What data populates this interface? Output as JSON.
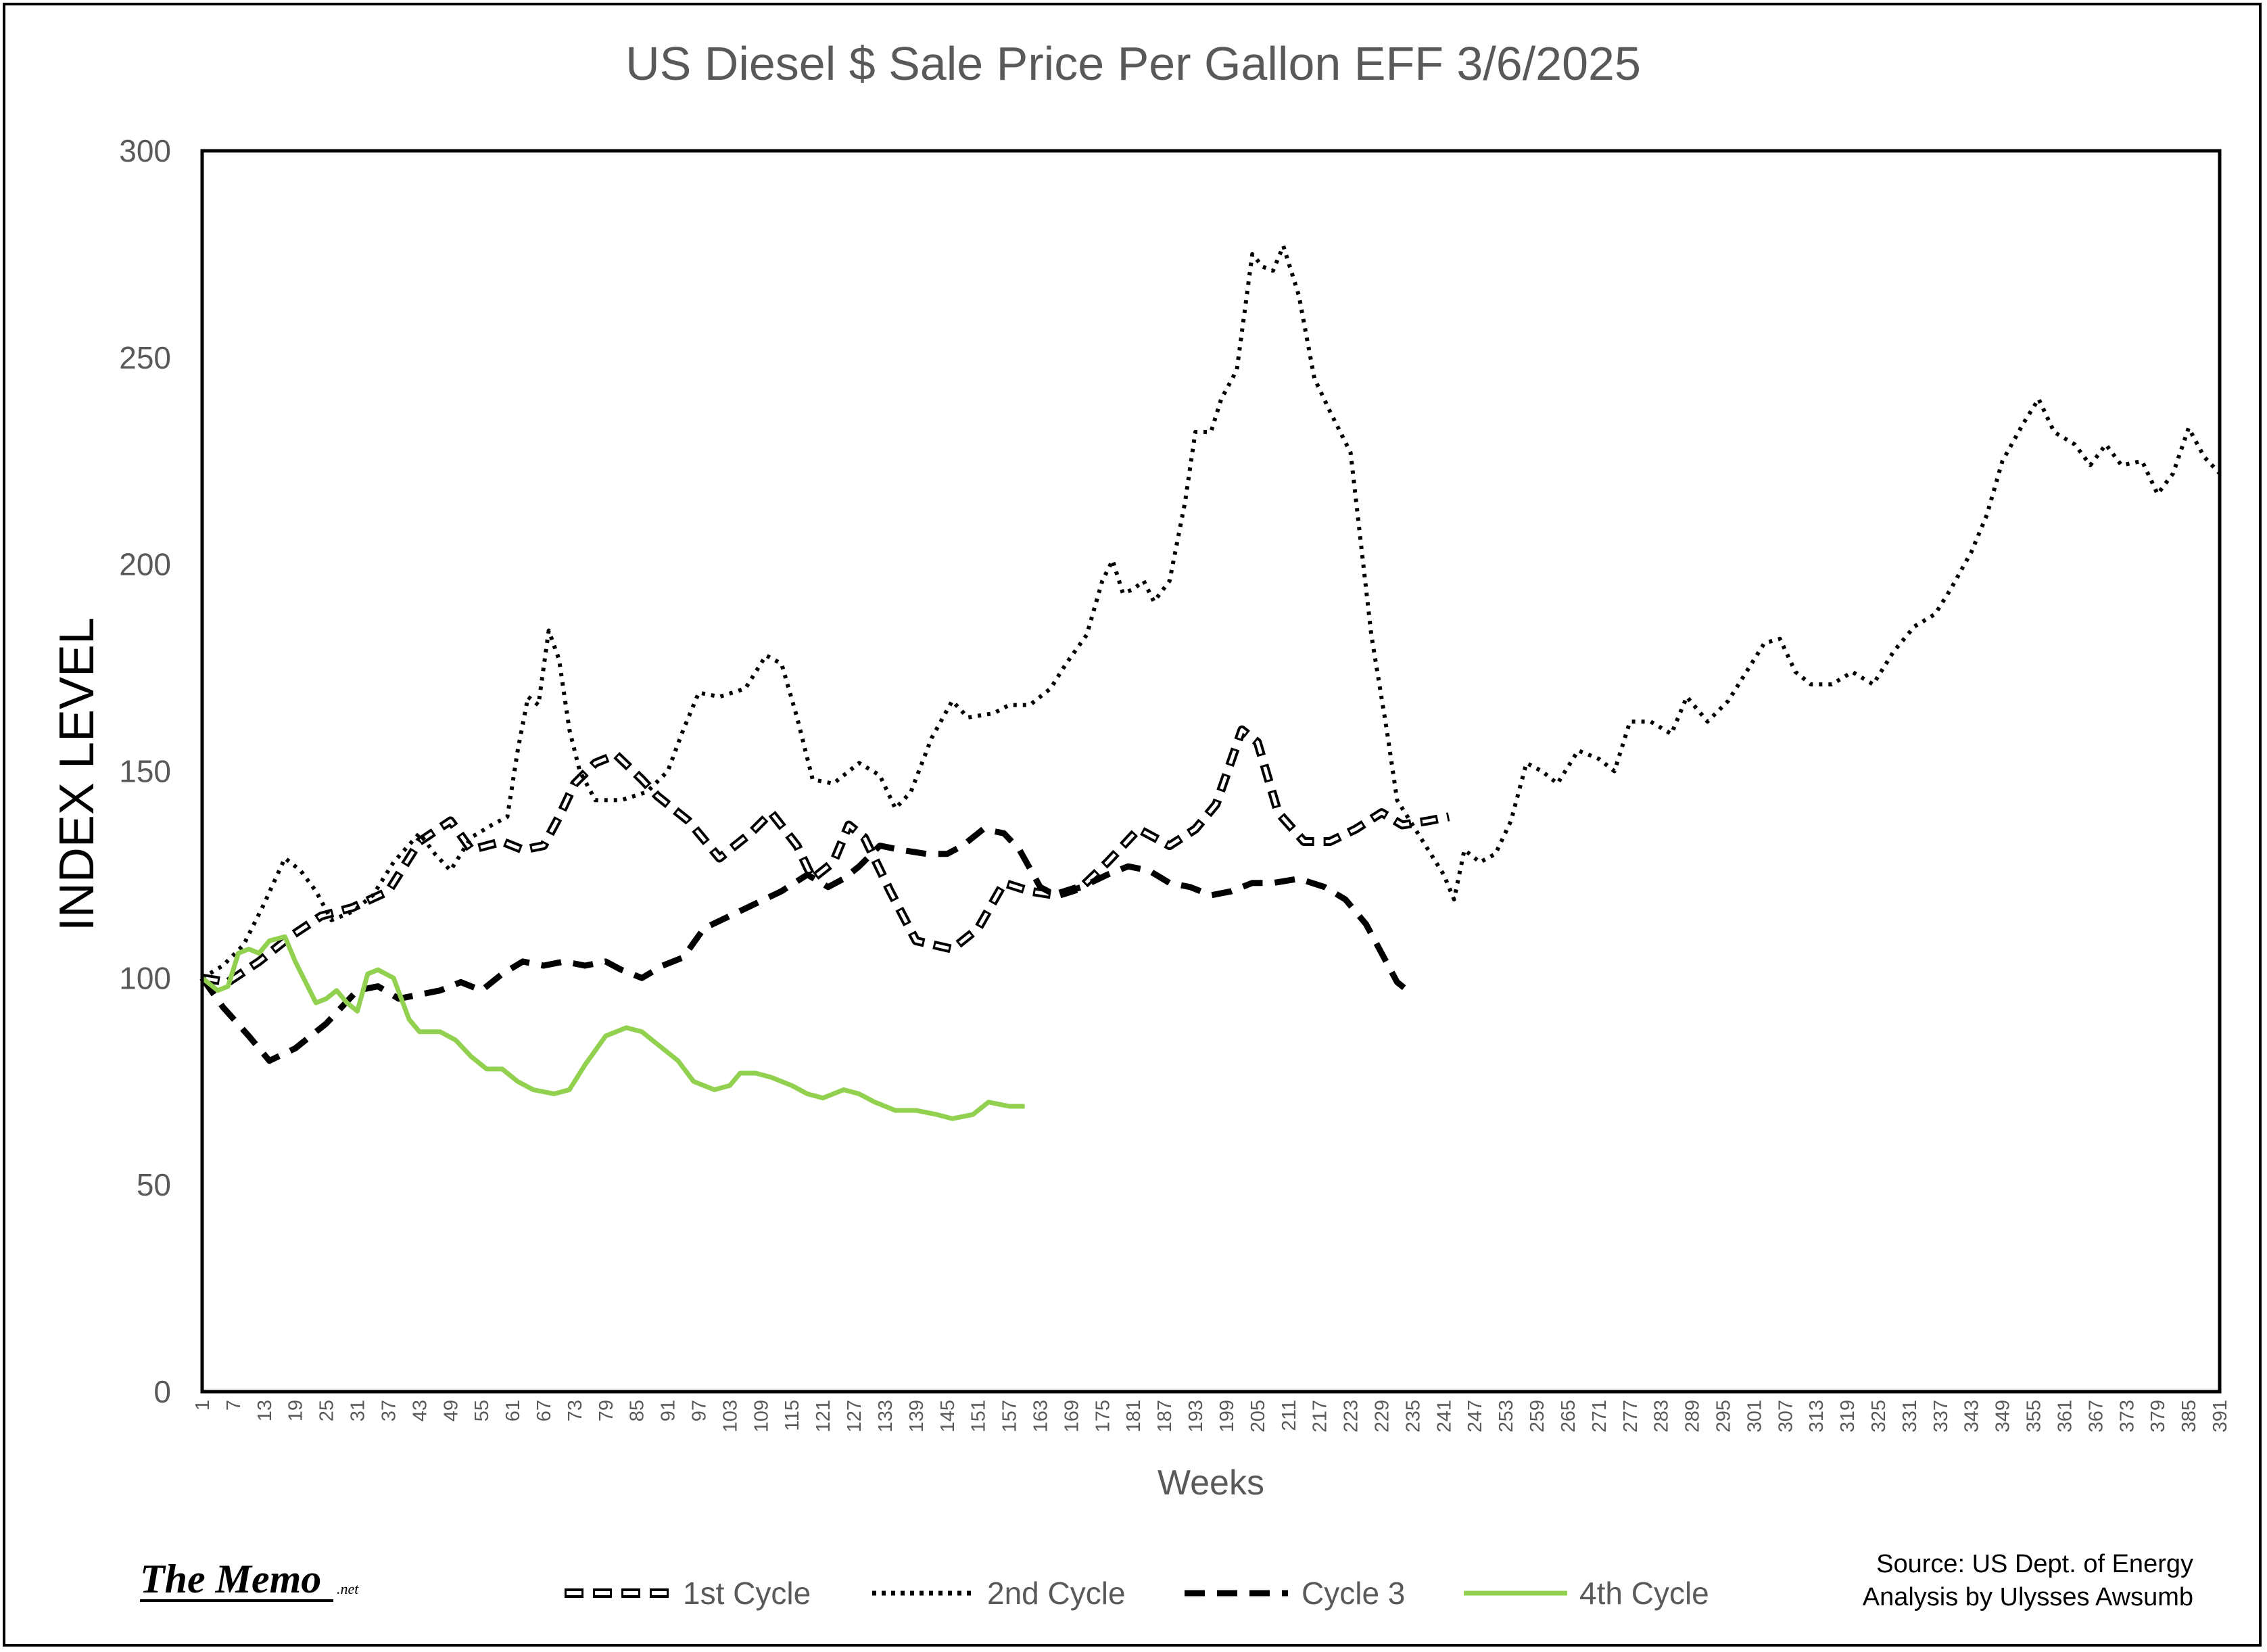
{
  "chart_data": {
    "type": "line",
    "title": "US Diesel $ Sale Price Per Gallon EFF 3/6/2025",
    "xlabel": "Weeks",
    "ylabel": "INDEX LEVEL",
    "ylim": [
      0,
      300
    ],
    "xlim": [
      1,
      391
    ],
    "yticks": [
      "0",
      "50",
      "100",
      "150",
      "200",
      "250",
      "300"
    ],
    "xticks": [
      "1",
      "7",
      "13",
      "19",
      "25",
      "31",
      "37",
      "43",
      "49",
      "55",
      "61",
      "67",
      "73",
      "79",
      "85",
      "91",
      "97",
      "103",
      "109",
      "115",
      "121",
      "127",
      "133",
      "139",
      "145",
      "151",
      "157",
      "163",
      "169",
      "175",
      "181",
      "187",
      "193",
      "199",
      "205",
      "211",
      "217",
      "223",
      "229",
      "235",
      "241",
      "247",
      "253",
      "259",
      "265",
      "271",
      "277",
      "283",
      "289",
      "295",
      "301",
      "307",
      "313",
      "319",
      "325",
      "331",
      "337",
      "343",
      "349",
      "355",
      "361",
      "367",
      "373",
      "379",
      "385",
      "391"
    ],
    "legend_position": "bottom",
    "series": [
      {
        "name": "1st Cycle",
        "style": "double-dash",
        "color": "#000000",
        "points": [
          [
            1,
            100
          ],
          [
            6,
            99
          ],
          [
            12,
            104
          ],
          [
            18,
            110
          ],
          [
            24,
            115
          ],
          [
            30,
            117
          ],
          [
            37,
            121
          ],
          [
            43,
            133
          ],
          [
            49,
            138
          ],
          [
            53,
            131
          ],
          [
            59,
            133
          ],
          [
            63,
            131
          ],
          [
            67,
            132
          ],
          [
            70,
            139
          ],
          [
            73,
            147
          ],
          [
            77,
            152
          ],
          [
            81,
            154
          ],
          [
            86,
            148
          ],
          [
            89,
            144
          ],
          [
            95,
            138
          ],
          [
            101,
            129
          ],
          [
            107,
            135
          ],
          [
            111,
            140
          ],
          [
            116,
            132
          ],
          [
            119,
            124
          ],
          [
            123,
            128
          ],
          [
            126,
            137
          ],
          [
            129,
            134
          ],
          [
            134,
            121
          ],
          [
            139,
            109
          ],
          [
            146,
            107
          ],
          [
            151,
            112
          ],
          [
            156,
            123
          ],
          [
            161,
            121
          ],
          [
            166,
            120
          ],
          [
            171,
            122
          ],
          [
            176,
            128
          ],
          [
            182,
            136
          ],
          [
            188,
            132
          ],
          [
            193,
            136
          ],
          [
            197,
            142
          ],
          [
            202,
            160
          ],
          [
            205,
            157
          ],
          [
            209,
            140
          ],
          [
            214,
            133
          ],
          [
            219,
            133
          ],
          [
            224,
            136
          ],
          [
            229,
            140
          ],
          [
            233,
            137
          ],
          [
            238,
            138
          ],
          [
            242,
            139
          ]
        ]
      },
      {
        "name": "2nd Cycle",
        "style": "dotted",
        "color": "#000000",
        "points": [
          [
            1,
            100
          ],
          [
            5,
            103
          ],
          [
            9,
            108
          ],
          [
            13,
            118
          ],
          [
            17,
            129
          ],
          [
            20,
            126
          ],
          [
            23,
            121
          ],
          [
            26,
            114
          ],
          [
            30,
            116
          ],
          [
            34,
            120
          ],
          [
            38,
            128
          ],
          [
            43,
            135
          ],
          [
            46,
            130
          ],
          [
            49,
            126
          ],
          [
            53,
            134
          ],
          [
            57,
            137
          ],
          [
            60,
            139
          ],
          [
            62,
            155
          ],
          [
            64,
            168
          ],
          [
            66,
            166
          ],
          [
            68,
            184
          ],
          [
            70,
            177
          ],
          [
            72,
            160
          ],
          [
            74,
            150
          ],
          [
            77,
            143
          ],
          [
            82,
            143
          ],
          [
            87,
            145
          ],
          [
            91,
            150
          ],
          [
            94,
            160
          ],
          [
            97,
            169
          ],
          [
            101,
            168
          ],
          [
            106,
            170
          ],
          [
            110,
            178
          ],
          [
            113,
            176
          ],
          [
            116,
            163
          ],
          [
            119,
            148
          ],
          [
            123,
            147
          ],
          [
            128,
            152
          ],
          [
            132,
            149
          ],
          [
            135,
            141
          ],
          [
            138,
            145
          ],
          [
            142,
            158
          ],
          [
            146,
            167
          ],
          [
            149,
            163
          ],
          [
            154,
            164
          ],
          [
            157,
            166
          ],
          [
            161,
            166
          ],
          [
            165,
            170
          ],
          [
            168,
            176
          ],
          [
            172,
            183
          ],
          [
            175,
            196
          ],
          [
            177,
            201
          ],
          [
            179,
            193
          ],
          [
            181,
            194
          ],
          [
            183,
            196
          ],
          [
            185,
            191
          ],
          [
            188,
            196
          ],
          [
            191,
            215
          ],
          [
            193,
            232
          ],
          [
            196,
            232
          ],
          [
            198,
            240
          ],
          [
            201,
            247
          ],
          [
            204,
            275
          ],
          [
            206,
            272
          ],
          [
            208,
            271
          ],
          [
            210,
            277
          ],
          [
            213,
            265
          ],
          [
            216,
            245
          ],
          [
            219,
            237
          ],
          [
            223,
            227
          ],
          [
            225,
            205
          ],
          [
            227,
            183
          ],
          [
            230,
            160
          ],
          [
            232,
            143
          ],
          [
            235,
            137
          ],
          [
            238,
            131
          ],
          [
            241,
            125
          ],
          [
            243,
            119
          ],
          [
            245,
            131
          ],
          [
            248,
            128
          ],
          [
            251,
            130
          ],
          [
            254,
            138
          ],
          [
            257,
            152
          ],
          [
            260,
            150
          ],
          [
            263,
            147
          ],
          [
            267,
            155
          ],
          [
            271,
            153
          ],
          [
            274,
            150
          ],
          [
            277,
            162
          ],
          [
            281,
            162
          ],
          [
            285,
            159
          ],
          [
            288,
            168
          ],
          [
            292,
            162
          ],
          [
            296,
            167
          ],
          [
            299,
            173
          ],
          [
            303,
            181
          ],
          [
            306,
            182
          ],
          [
            309,
            174
          ],
          [
            312,
            171
          ],
          [
            316,
            171
          ],
          [
            320,
            174
          ],
          [
            324,
            171
          ],
          [
            328,
            179
          ],
          [
            332,
            185
          ],
          [
            336,
            188
          ],
          [
            339,
            194
          ],
          [
            343,
            203
          ],
          [
            346,
            212
          ],
          [
            349,
            225
          ],
          [
            353,
            234
          ],
          [
            356,
            240
          ],
          [
            359,
            232
          ],
          [
            363,
            229
          ],
          [
            366,
            224
          ],
          [
            369,
            229
          ],
          [
            372,
            224
          ],
          [
            376,
            225
          ],
          [
            379,
            217
          ],
          [
            382,
            222
          ],
          [
            385,
            233
          ],
          [
            388,
            226
          ],
          [
            391,
            222
          ]
        ]
      },
      {
        "name": "Cycle 3",
        "style": "dashed",
        "color": "#000000",
        "points": [
          [
            1,
            100
          ],
          [
            5,
            93
          ],
          [
            10,
            86
          ],
          [
            14,
            80
          ],
          [
            19,
            83
          ],
          [
            25,
            89
          ],
          [
            31,
            97
          ],
          [
            35,
            98
          ],
          [
            39,
            95
          ],
          [
            43,
            96
          ],
          [
            47,
            97
          ],
          [
            51,
            99
          ],
          [
            55,
            97
          ],
          [
            59,
            101
          ],
          [
            63,
            104
          ],
          [
            67,
            103
          ],
          [
            71,
            104
          ],
          [
            75,
            103
          ],
          [
            79,
            104
          ],
          [
            82,
            102
          ],
          [
            86,
            100
          ],
          [
            90,
            103
          ],
          [
            94,
            105
          ],
          [
            98,
            112
          ],
          [
            103,
            115
          ],
          [
            108,
            118
          ],
          [
            113,
            121
          ],
          [
            118,
            125
          ],
          [
            122,
            122
          ],
          [
            125,
            124
          ],
          [
            128,
            127
          ],
          [
            132,
            132
          ],
          [
            136,
            131
          ],
          [
            141,
            130
          ],
          [
            145,
            130
          ],
          [
            148,
            132
          ],
          [
            152,
            136
          ],
          [
            156,
            135
          ],
          [
            159,
            131
          ],
          [
            163,
            122
          ],
          [
            166,
            120
          ],
          [
            171,
            122
          ],
          [
            176,
            125
          ],
          [
            180,
            127
          ],
          [
            184,
            126
          ],
          [
            188,
            123
          ],
          [
            192,
            122
          ],
          [
            196,
            120
          ],
          [
            200,
            121
          ],
          [
            204,
            123
          ],
          [
            208,
            123
          ],
          [
            213,
            124
          ],
          [
            218,
            122
          ],
          [
            222,
            119
          ],
          [
            226,
            113
          ],
          [
            229,
            106
          ],
          [
            232,
            99
          ],
          [
            235,
            96
          ]
        ]
      },
      {
        "name": "4th Cycle",
        "style": "solid",
        "color": "#92d050",
        "points": [
          [
            1,
            100
          ],
          [
            4,
            97
          ],
          [
            6,
            98
          ],
          [
            8,
            106
          ],
          [
            10,
            107
          ],
          [
            12,
            106
          ],
          [
            14,
            109
          ],
          [
            17,
            110
          ],
          [
            19,
            104
          ],
          [
            21,
            99
          ],
          [
            23,
            94
          ],
          [
            25,
            95
          ],
          [
            27,
            97
          ],
          [
            29,
            94
          ],
          [
            31,
            92
          ],
          [
            33,
            101
          ],
          [
            35,
            102
          ],
          [
            38,
            100
          ],
          [
            41,
            90
          ],
          [
            43,
            87
          ],
          [
            47,
            87
          ],
          [
            50,
            85
          ],
          [
            53,
            81
          ],
          [
            56,
            78
          ],
          [
            59,
            78
          ],
          [
            62,
            75
          ],
          [
            65,
            73
          ],
          [
            69,
            72
          ],
          [
            72,
            73
          ],
          [
            75,
            79
          ],
          [
            79,
            86
          ],
          [
            83,
            88
          ],
          [
            86,
            87
          ],
          [
            89,
            84
          ],
          [
            93,
            80
          ],
          [
            96,
            75
          ],
          [
            100,
            73
          ],
          [
            103,
            74
          ],
          [
            105,
            77
          ],
          [
            108,
            77
          ],
          [
            111,
            76
          ],
          [
            115,
            74
          ],
          [
            118,
            72
          ],
          [
            121,
            71
          ],
          [
            125,
            73
          ],
          [
            128,
            72
          ],
          [
            131,
            70
          ],
          [
            135,
            68
          ],
          [
            139,
            68
          ],
          [
            143,
            67
          ],
          [
            146,
            66
          ],
          [
            150,
            67
          ],
          [
            153,
            70
          ],
          [
            157,
            69
          ],
          [
            160,
            69
          ]
        ]
      }
    ],
    "annotations": {
      "source_line1": "Source: US Dept. of Energy",
      "source_line2": "Analysis by Ulysses Awsumb",
      "logo_main": "The Memo",
      "logo_suffix": ".net"
    }
  }
}
